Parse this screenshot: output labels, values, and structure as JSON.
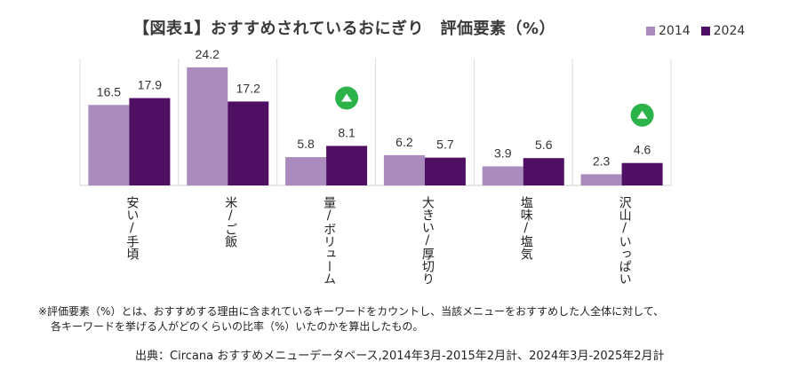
{
  "title": "【図表1】おすすめされているおにぎり　評価要素（%）",
  "colors": {
    "s2014": "#a98bbd",
    "s2024": "#4f0f63",
    "up_badge": "#2bb34a"
  },
  "legend": [
    "2014",
    "2024"
  ],
  "chart_data": {
    "type": "bar",
    "categories": [
      "安い/手頃",
      "米/ご飯",
      "量/ボリューム",
      "大きい/厚切り",
      "塩味/塩気",
      "沢山/いっぱい"
    ],
    "series": [
      {
        "name": "2014",
        "values": [
          16.5,
          24.2,
          5.8,
          6.2,
          3.9,
          2.3
        ]
      },
      {
        "name": "2024",
        "values": [
          17.9,
          17.2,
          8.1,
          5.7,
          5.6,
          4.6
        ]
      }
    ],
    "value_labels": [
      [
        "16.5",
        "24.2",
        "5.8",
        "6.2",
        "3.9",
        "2.3"
      ],
      [
        "17.9",
        "17.2",
        "8.1",
        "5.7",
        "5.6",
        "4.6"
      ]
    ],
    "ylim": [
      0,
      26
    ],
    "up_markers": [
      "量/ボリューム",
      "沢山/いっぱい"
    ],
    "grid": "vertical separators"
  },
  "note": [
    "※評価要素（%）とは、おすすめする理由に含まれているキーワードをカウントし、当該メニューをおすすめした人全体に対して、",
    "各キーワードを挙げる人がどのくらいの比率（%）いたのかを算出したもの。"
  ],
  "source": "出典：Circana おすすめメニューデータベース,2014年3月-2015年2月計、2024年3月-2025年2月計"
}
